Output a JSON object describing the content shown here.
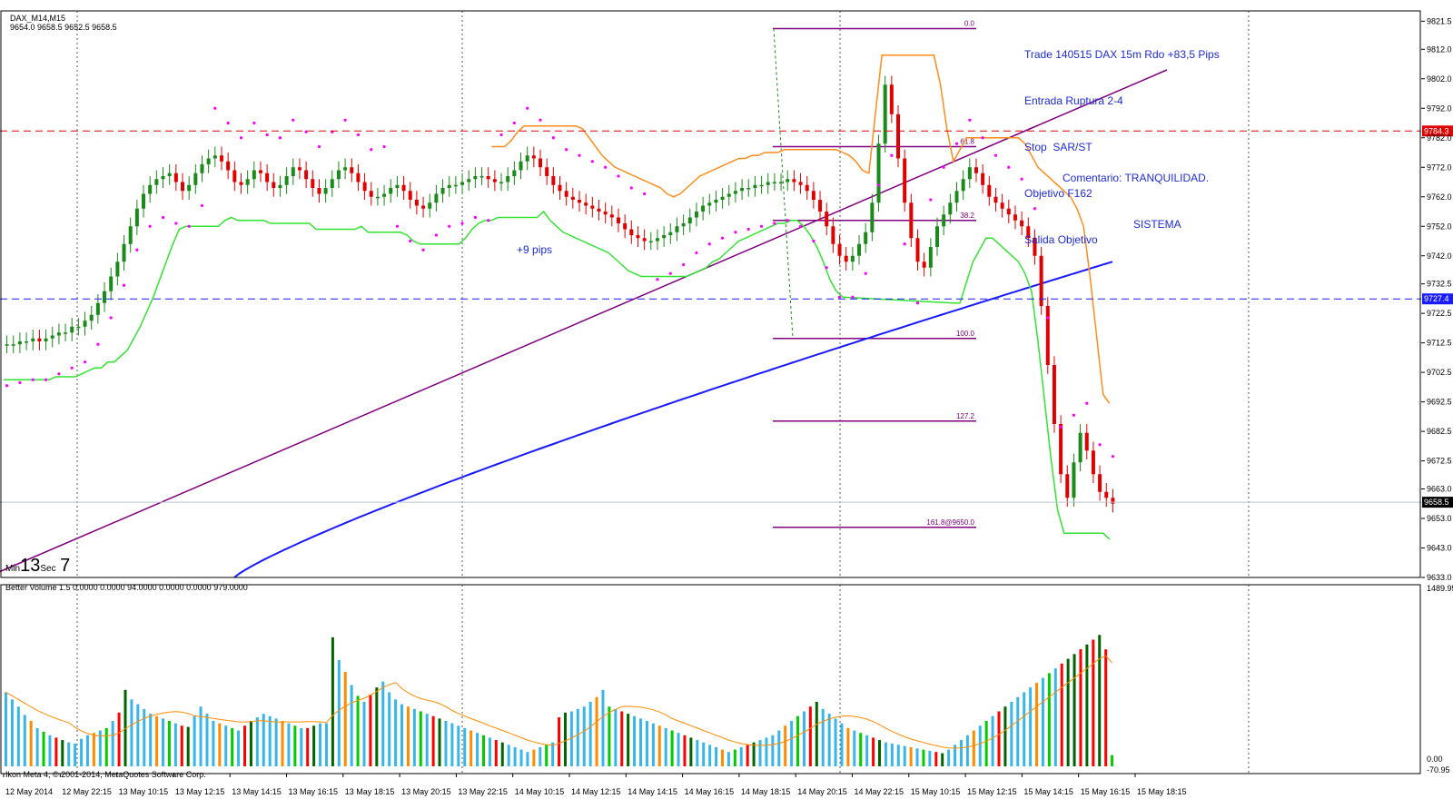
{
  "header": {
    "symbol": "DAX_M14,M15",
    "ohlc": "9654.0 9658.5 9652.5 9658.5",
    "volume_indicator": "Better Volume 1.5 0.0000 0.0000 94.0000 0.0000 0.0000 979.0000",
    "copyright": "Ikon Meta 4, © 2001-2014, MetaQuotes Software Corp."
  },
  "timer": {
    "min_label": "Min",
    "min_value": "13",
    "sec_label": "Sec",
    "sec_value": "7"
  },
  "notes": {
    "trade_lines": [
      "Trade 140515 DAX 15m Rdo +83,5 Pips",
      "Entrada Ruptura 2-4",
      "Stop  SAR/ST",
      "Objetivo F162",
      "Salida Objetivo"
    ],
    "comment_lines": [
      "Comentario: TRANQUILIDAD.",
      "SISTEMA"
    ],
    "pips_label": "+9 pips"
  },
  "colors": {
    "bull": "#1a8a1a",
    "bear": "#e00000",
    "sar": "#ff00ff",
    "supertrend_green": "#32e332",
    "supertrend_orange": "#ff8c1a",
    "ma": "#1a1aff",
    "trendline": "#800080",
    "fib": "#800080",
    "vol_blue": "#38b6ea",
    "vol_red": "#ff0000",
    "vol_green": "#00cc00",
    "vol_darkgreen": "#006400",
    "vol_orange": "#ff8c00",
    "vol_ma": "#ff8c00"
  },
  "chart_data": [
    {
      "type": "candlestick",
      "ylim": [
        9633.0,
        9825.0
      ],
      "y_ticks": [
        "9821.5",
        "9812.0",
        "9802.0",
        "9792.0",
        "9782.0",
        "9772.0",
        "9762.0",
        "9752.0",
        "9742.0",
        "9732.5",
        "9722.5",
        "9712.5",
        "9702.5",
        "9692.5",
        "9682.5",
        "9672.5",
        "9663.0",
        "9653.0",
        "9643.0",
        "9633.0"
      ],
      "x_tick_labels": [
        "12 May 2014",
        "12 May 22:15",
        "13 May 10:15",
        "13 May 12:15",
        "13 May 14:15",
        "13 May 16:15",
        "13 May 18:15",
        "13 May 20:15",
        "13 May 22:15",
        "14 May 10:15",
        "14 May 12:15",
        "14 May 14:15",
        "14 May 16:15",
        "14 May 18:15",
        "14 May 20:15",
        "14 May 22:15",
        "15 May 10:15",
        "15 May 12:15",
        "15 May 14:15",
        "15 May 16:15",
        "15 May 18:15"
      ],
      "price_markers": [
        {
          "label": "9784.3",
          "value": 9784.3,
          "color": "#e00000"
        },
        {
          "label": "9727.4",
          "value": 9727.4,
          "color": "#1a1aff"
        },
        {
          "label": "9658.5",
          "value": 9658.5,
          "color": "#000000"
        }
      ],
      "fibonacci": [
        {
          "label": "0.0",
          "value": 9819.0
        },
        {
          "label": "61.8",
          "value": 9779.0
        },
        {
          "label": "38.2",
          "value": 9754.0
        },
        {
          "label": "100.0",
          "value": 9714.0
        },
        {
          "label": "127.2",
          "value": 9686.0
        },
        {
          "label": "161.8@9650.0",
          "value": 9650.0
        }
      ],
      "series": [
        {
          "name": "DAX_M14,M15",
          "values": [
            9712,
            9712,
            9713,
            9713,
            9714,
            9713,
            9714,
            9715,
            9716,
            9716,
            9718,
            9718,
            9720,
            9722,
            9726,
            9730,
            9735,
            9740,
            9746,
            9752,
            9758,
            9763,
            9766,
            9768,
            9769,
            9770,
            9767,
            9764,
            9766,
            9770,
            9773,
            9775,
            9776,
            9774,
            9771,
            9767,
            9766,
            9768,
            9771,
            9770,
            9767,
            9765,
            9766,
            9769,
            9772,
            9771,
            9768,
            9765,
            9763,
            9765,
            9768,
            9771,
            9772,
            9770,
            9767,
            9764,
            9762,
            9762,
            9763,
            9765,
            9766,
            9764,
            9761,
            9759,
            9758,
            9760,
            9763,
            9765,
            9766,
            9766,
            9767,
            9768,
            9769,
            9769,
            9768,
            9767,
            9767,
            9769,
            9771,
            9774,
            9776,
            9775,
            9772,
            9769,
            9766,
            9764,
            9762,
            9761,
            9760,
            9759,
            9758,
            9757,
            9756,
            9755,
            9753,
            9751,
            9749,
            9748,
            9747,
            9747,
            9748,
            9749,
            9750,
            9752,
            9753,
            9755,
            9757,
            9759,
            9760,
            9761,
            9762,
            9763,
            9764,
            9765,
            9765,
            9766,
            9766,
            9767,
            9767,
            9767,
            9768,
            9767,
            9766,
            9764,
            9761,
            9757,
            9752,
            9746,
            9742,
            9740,
            9742,
            9746,
            9750,
            9760,
            9780,
            9800,
            9790,
            9775,
            9760,
            9748,
            9740,
            9738,
            9745,
            9752,
            9756,
            9760,
            9764,
            9768,
            9772,
            9770,
            9766,
            9762,
            9760,
            9758,
            9756,
            9754,
            9752,
            9748,
            9742,
            9725,
            9705,
            9685,
            9668,
            9660,
            9672,
            9682,
            9676,
            9668,
            9662,
            9660,
            9658
          ]
        }
      ]
    },
    {
      "type": "bar",
      "title": "Better Volume 1.5",
      "ylim": [
        0.0,
        1489.95
      ],
      "y_ticks": [
        "1489.95",
        "0.00",
        "-70.95"
      ],
      "series": [
        {
          "name": "Better Volume 1.5",
          "values": [
            620,
            560,
            500,
            430,
            380,
            320,
            290,
            260,
            240,
            220,
            200,
            190,
            230,
            260,
            280,
            300,
            320,
            380,
            450,
            640,
            560,
            520,
            480,
            440,
            420,
            400,
            380,
            360,
            340,
            330,
            420,
            500,
            440,
            380,
            360,
            340,
            320,
            300,
            340,
            380,
            410,
            440,
            420,
            400,
            380,
            360,
            340,
            320,
            320,
            340,
            360,
            360,
            1080,
            890,
            790,
            680,
            590,
            540,
            600,
            660,
            710,
            620,
            560,
            520,
            500,
            480,
            460,
            440,
            420,
            400,
            380,
            360,
            340,
            320,
            300,
            280,
            260,
            240,
            220,
            200,
            180,
            160,
            140,
            120,
            140,
            160,
            180,
            200,
            410,
            450,
            460,
            480,
            500,
            540,
            580,
            640,
            500,
            480,
            460,
            440,
            420,
            400,
            380,
            360,
            340,
            320,
            300,
            280,
            260,
            240,
            220,
            200,
            180,
            160,
            140,
            120,
            140,
            160,
            180,
            200,
            220,
            240,
            260,
            300,
            340,
            380,
            420,
            460,
            500,
            540,
            480,
            440,
            400,
            360,
            320,
            300,
            280,
            260,
            240,
            220,
            200,
            190,
            180,
            170,
            160,
            150,
            140,
            130,
            120,
            110,
            140,
            180,
            220,
            260,
            300,
            340,
            380,
            420,
            460,
            500,
            540,
            580,
            620,
            660,
            700,
            740,
            780,
            820,
            860,
            900,
            940,
            980,
            1020,
            1060,
            1100,
            979,
            94
          ]
        }
      ]
    }
  ]
}
